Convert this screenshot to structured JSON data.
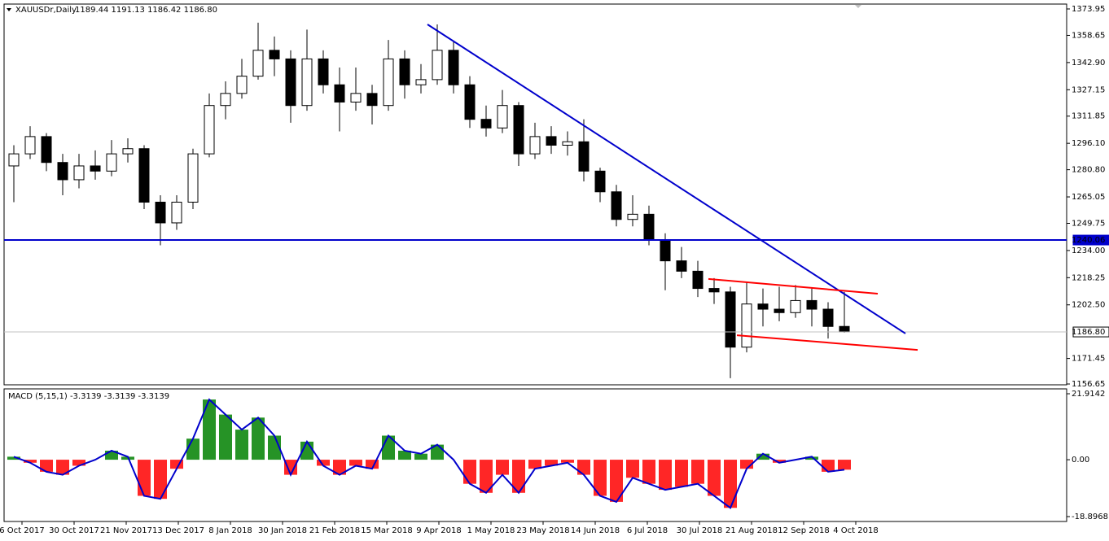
{
  "chart_data": [
    {
      "type": "candlestick",
      "title": "XAUUSDr,Daily",
      "subtitle": "1189.44 1191.13 1186.42 1186.80",
      "x": [
        2.5,
        7.5,
        12.5,
        17.5,
        22.5,
        27.5,
        32.5,
        37.5,
        42.5,
        47.5,
        52.5,
        57.5,
        62.5,
        67.5,
        72.5,
        77.5,
        82.5,
        87.5,
        92.5,
        97.5,
        102.5,
        107.5,
        112.5,
        117.5,
        122.5,
        127.5,
        132.5,
        137.5,
        142.5,
        147.5,
        152.5,
        157.5,
        162.5,
        167.5,
        172.5,
        177.5,
        182.5,
        187.5,
        192.5,
        197.5,
        202.5,
        207.5,
        212.5,
        217.5,
        222.5,
        227.5,
        232.5,
        237.5,
        242.5,
        247.5,
        252.5,
        257.5
      ],
      "open": [
        1283,
        1290,
        1300,
        1285,
        1275,
        1283,
        1280,
        1290,
        1293,
        1262,
        1250,
        1262,
        1290,
        1318,
        1325,
        1335,
        1350,
        1345,
        1318,
        1345,
        1330,
        1320,
        1325,
        1318,
        1345,
        1330,
        1333,
        1350,
        1330,
        1310,
        1305,
        1318,
        1290,
        1300,
        1295,
        1297,
        1280,
        1268,
        1252,
        1255,
        1240,
        1228,
        1222,
        1212,
        1210,
        1178,
        1203,
        1200,
        1198,
        1205,
        1200,
        1190
      ],
      "high": [
        1295,
        1306,
        1302,
        1290,
        1290,
        1292,
        1298,
        1299,
        1295,
        1266,
        1266,
        1293,
        1325,
        1332,
        1345,
        1366,
        1358,
        1350,
        1362,
        1350,
        1340,
        1340,
        1330,
        1356,
        1350,
        1342,
        1365,
        1355,
        1335,
        1318,
        1327,
        1320,
        1308,
        1306,
        1303,
        1310,
        1282,
        1272,
        1266,
        1260,
        1244,
        1236,
        1228,
        1218,
        1213,
        1216,
        1212,
        1213,
        1214,
        1212,
        1204,
        1210
      ],
      "low": [
        1262,
        1287,
        1280,
        1266,
        1270,
        1275,
        1277,
        1285,
        1258,
        1237,
        1246,
        1258,
        1288,
        1310,
        1322,
        1333,
        1335,
        1308,
        1315,
        1325,
        1303,
        1315,
        1307,
        1315,
        1322,
        1325,
        1330,
        1325,
        1305,
        1300,
        1302,
        1283,
        1287,
        1290,
        1289,
        1274,
        1262,
        1248,
        1248,
        1237,
        1211,
        1218,
        1207,
        1203,
        1160,
        1175,
        1190,
        1193,
        1195,
        1190,
        1183,
        1186.42
      ],
      "close": [
        1290,
        1300,
        1285,
        1275,
        1283,
        1280,
        1290,
        1293,
        1262,
        1250,
        1262,
        1290,
        1318,
        1325,
        1335,
        1350,
        1345,
        1318,
        1345,
        1330,
        1320,
        1325,
        1318,
        1345,
        1330,
        1333,
        1350,
        1330,
        1310,
        1305,
        1318,
        1290,
        1300,
        1295,
        1297,
        1280,
        1268,
        1252,
        1255,
        1240,
        1228,
        1222,
        1212,
        1210,
        1178,
        1203,
        1200,
        1198,
        1205,
        1200,
        1190,
        1186.8
      ],
      "up_color": "#ffffff",
      "down_color": "#000000",
      "wick_color": "#000000",
      "xlim": [
        -0.5,
        325.75
      ],
      "ylim": [
        1156.18,
        1376.78
      ],
      "yticks": [
        1373.95,
        1358.65,
        {
          "value": 1342.9,
          "label": "1342.90"
        },
        1327.15,
        1311.85,
        {
          "value": 1296.1,
          "label": "1296.10"
        },
        {
          "value": 1280.8,
          "label": "1280.80"
        },
        1265.05,
        1249.75,
        {
          "value": 1234,
          "label": "1234.00"
        },
        1218.25,
        {
          "value": 1202.5,
          "label": "1202.50"
        },
        1171.45,
        1156.65
      ],
      "xticks": [
        {
          "value": 5,
          "label": "6 Oct 2017"
        },
        {
          "value": 21,
          "label": "30 Oct 2017"
        },
        {
          "value": 37,
          "label": "21 Nov 2017"
        },
        {
          "value": 53,
          "label": "13 Dec 2017"
        },
        {
          "value": 69,
          "label": "8 Jan 2018"
        },
        {
          "value": 85,
          "label": "30 Jan 2018"
        },
        {
          "value": 101,
          "label": "21 Feb 2018"
        },
        {
          "value": 117,
          "label": "15 Mar 2018"
        },
        {
          "value": 133,
          "label": "9 Apr 2018"
        },
        {
          "value": 149,
          "label": "1 May 2018"
        },
        {
          "value": 165,
          "label": "23 May 2018"
        },
        {
          "value": 181,
          "label": "14 Jun 2018"
        },
        {
          "value": 197,
          "label": "6 Jul 2018"
        },
        {
          "value": 213,
          "label": "30 Jul 2018"
        },
        {
          "value": 229,
          "label": "21 Aug 2018"
        },
        {
          "value": 245,
          "label": "12 Sep 2018"
        },
        {
          "value": 261,
          "label": "4 Oct 2018"
        }
      ],
      "price_lines": [
        {
          "value": 1240.06,
          "color": "#0000cc"
        },
        {
          "value": 1186.8,
          "label": "1186.80",
          "color": "#c0c0c0"
        }
      ],
      "trendlines": [
        {
          "color": "#0000cc",
          "x": [
            129.5,
            276.25
          ],
          "y": [
            1365.0,
            1185.9
          ]
        },
        {
          "color": "#ff0000",
          "x": [
            215.75,
            267.75
          ],
          "y": [
            1217.5,
            1209.0
          ]
        },
        {
          "color": "#ff0000",
          "x": [
            224.5,
            280
          ],
          "y": [
            1184.9,
            1176.4
          ]
        }
      ]
    },
    {
      "type": "macd",
      "title": "MACD (5,15,1) -3.3139 -3.3139 -3.3139",
      "x": [
        2.5,
        7.5,
        12.5,
        17.5,
        22.5,
        27.5,
        32.5,
        37.5,
        42.5,
        47.5,
        52.5,
        57.5,
        62.5,
        67.5,
        72.5,
        77.5,
        82.5,
        87.5,
        92.5,
        97.5,
        102.5,
        107.5,
        112.5,
        117.5,
        122.5,
        127.5,
        132.5,
        137.5,
        142.5,
        147.5,
        152.5,
        157.5,
        162.5,
        167.5,
        172.5,
        177.5,
        182.5,
        187.5,
        192.5,
        197.5,
        202.5,
        207.5,
        212.5,
        217.5,
        222.5,
        227.5,
        232.5,
        237.5,
        242.5,
        247.5,
        252.5,
        257.5
      ],
      "values": [
        1,
        -1,
        -4,
        -5,
        -2,
        0,
        3,
        1,
        -12,
        -13,
        -3,
        7,
        20,
        15,
        10,
        14,
        8,
        -5,
        6,
        -2,
        -5,
        -2,
        -3,
        8,
        3,
        2,
        5,
        0,
        -8,
        -11,
        -5,
        -11,
        -3,
        -2,
        -1,
        -5,
        -12,
        -14,
        -6,
        -8,
        -10,
        -9,
        -8,
        -12,
        -16,
        -3,
        2,
        -1,
        0,
        1,
        -4,
        -3.3139
      ],
      "positive_color": "#008000",
      "negative_color": "#ff0000",
      "line_color": "#0000cc",
      "ylim": [
        -20.52,
        23.54
      ],
      "yticks": [
        21.9142,
        {
          "value": 0,
          "label": "0.00"
        },
        -18.8968
      ]
    }
  ]
}
